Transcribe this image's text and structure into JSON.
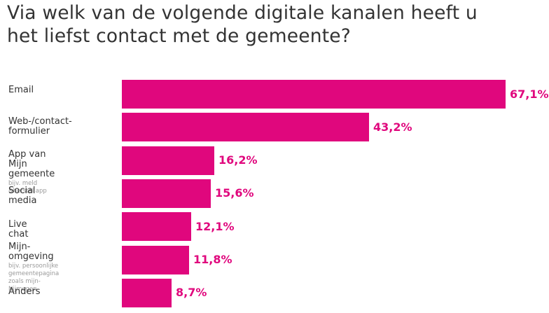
{
  "chart_data": {
    "type": "bar",
    "orientation": "horizontal",
    "title": "Via welk van de volgende digitale kanalen heeft u het liefst contact met de gemeente?",
    "categories": [
      {
        "label": "Email",
        "sub": ""
      },
      {
        "label": "Web-/contact-\nformulier",
        "sub": ""
      },
      {
        "label": "App van\nMijn gemeente",
        "sub": "bijv. meld &herstel app"
      },
      {
        "label": "Social media",
        "sub": ""
      },
      {
        "label": "Live chat",
        "sub": ""
      },
      {
        "label": "Mijn-omgeving",
        "sub": "bijv. persoonlijke gemeentepagina\nzoals mijn-Nijmegen"
      },
      {
        "label": "Anders",
        "sub": ""
      }
    ],
    "values": [
      67.1,
      43.2,
      16.2,
      15.6,
      12.1,
      11.8,
      8.7
    ],
    "value_labels": [
      "67,1%",
      "43,2%",
      "16,2%",
      "15,6%",
      "12,1%",
      "11,8%",
      "8,7%"
    ],
    "unit": "%",
    "xlim": [
      0,
      100
    ],
    "grid": false,
    "legend": "none",
    "bar_color": "#e0077d"
  }
}
